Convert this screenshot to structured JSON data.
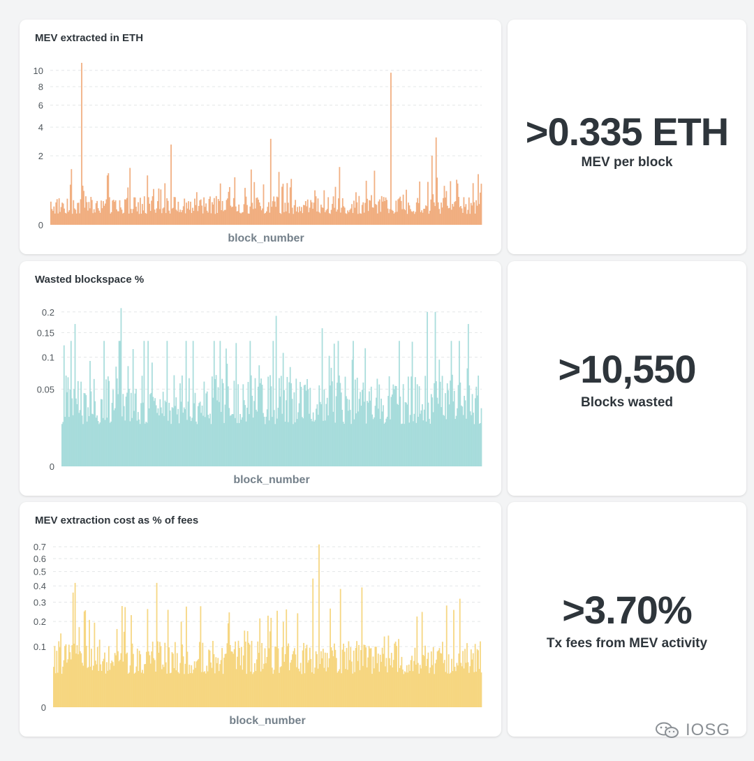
{
  "watermark": {
    "icon": "wechat-icon",
    "text": "IOSG"
  },
  "colors": {
    "mev": "#f0a978",
    "wasted": "#a2dad9",
    "cost": "#f5d478"
  },
  "stats": [
    {
      "value": ">0.335 ETH",
      "label": "MEV per block"
    },
    {
      "value": ">10,550",
      "label": "Blocks wasted"
    },
    {
      "value": ">3.70%",
      "label": "Tx fees from MEV activity"
    }
  ],
  "chart_data": [
    {
      "type": "bar",
      "title": "MEV extracted in ETH",
      "xlabel": "block_number",
      "ylabel": "",
      "scale": "sqrt",
      "ylim": [
        0,
        11
      ],
      "yticks": [
        0,
        2,
        4,
        6,
        8,
        10
      ],
      "grid": true,
      "color": "#f0a978",
      "bar_count": 420,
      "typical_range": [
        0.05,
        0.35
      ],
      "peaks": [
        {
          "position": 0.072,
          "value": 11.0
        },
        {
          "position": 0.048,
          "value": 1.3
        },
        {
          "position": 0.28,
          "value": 2.7
        },
        {
          "position": 0.51,
          "value": 3.1
        },
        {
          "position": 0.67,
          "value": 1.4
        },
        {
          "position": 0.79,
          "value": 9.7
        },
        {
          "position": 0.885,
          "value": 2.0
        },
        {
          "position": 0.895,
          "value": 3.2
        }
      ]
    },
    {
      "type": "bar",
      "title": "Wasted blockspace %",
      "xlabel": "block_number",
      "ylabel": "",
      "scale": "sqrt",
      "ylim": [
        0,
        0.22
      ],
      "yticks": [
        0,
        0.05,
        0.1,
        0.15,
        0.2
      ],
      "grid": true,
      "color": "#a2dad9",
      "bar_count": 420,
      "typical_range": [
        0.015,
        0.07
      ],
      "peaks": [
        {
          "position": 0.03,
          "value": 0.17
        },
        {
          "position": 0.14,
          "value": 0.21
        },
        {
          "position": 0.51,
          "value": 0.19
        },
        {
          "position": 0.62,
          "value": 0.16
        },
        {
          "position": 0.87,
          "value": 0.2
        },
        {
          "position": 0.89,
          "value": 0.2
        },
        {
          "position": 0.97,
          "value": 0.17
        }
      ]
    },
    {
      "type": "bar",
      "title": "MEV extraction cost as % of fees",
      "xlabel": "block_number",
      "ylabel": "",
      "scale": "sqrt",
      "ylim": [
        0,
        0.75
      ],
      "yticks": [
        0,
        0.1,
        0.2,
        0.3,
        0.4,
        0.5,
        0.6,
        0.7
      ],
      "grid": true,
      "color": "#f5d478",
      "bar_count": 420,
      "typical_range": [
        0.03,
        0.12
      ],
      "peaks": [
        {
          "position": 0.05,
          "value": 0.42
        },
        {
          "position": 0.24,
          "value": 0.42
        },
        {
          "position": 0.62,
          "value": 0.72
        },
        {
          "position": 0.67,
          "value": 0.38
        },
        {
          "position": 0.72,
          "value": 0.39
        },
        {
          "position": 0.95,
          "value": 0.32
        }
      ]
    }
  ]
}
